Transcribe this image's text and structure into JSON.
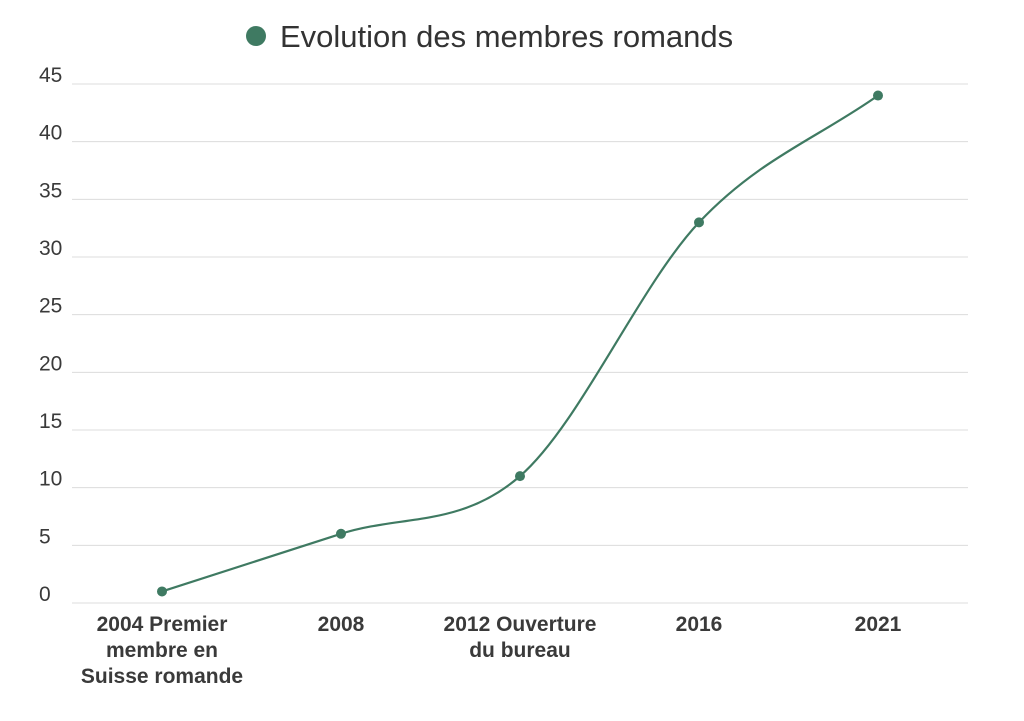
{
  "chart_data": {
    "type": "line",
    "title": "",
    "xlabel": "",
    "ylabel": "",
    "categories": [
      [
        "2004 Premier",
        "membre en",
        "Suisse romande"
      ],
      [
        "2008"
      ],
      [
        "2012 Ouverture",
        "du bureau"
      ],
      [
        "2016"
      ],
      [
        "2021"
      ]
    ],
    "series": [
      {
        "name": "Evolution des membres romands",
        "values": [
          1,
          6,
          11,
          33,
          44
        ],
        "color": "#3f7a62"
      }
    ],
    "ylim": [
      0,
      45
    ],
    "yticks": [
      0,
      5,
      10,
      15,
      20,
      25,
      30,
      35,
      40,
      45
    ],
    "grid": true,
    "legend_position": "top-center",
    "smooth": true,
    "markers": true
  }
}
